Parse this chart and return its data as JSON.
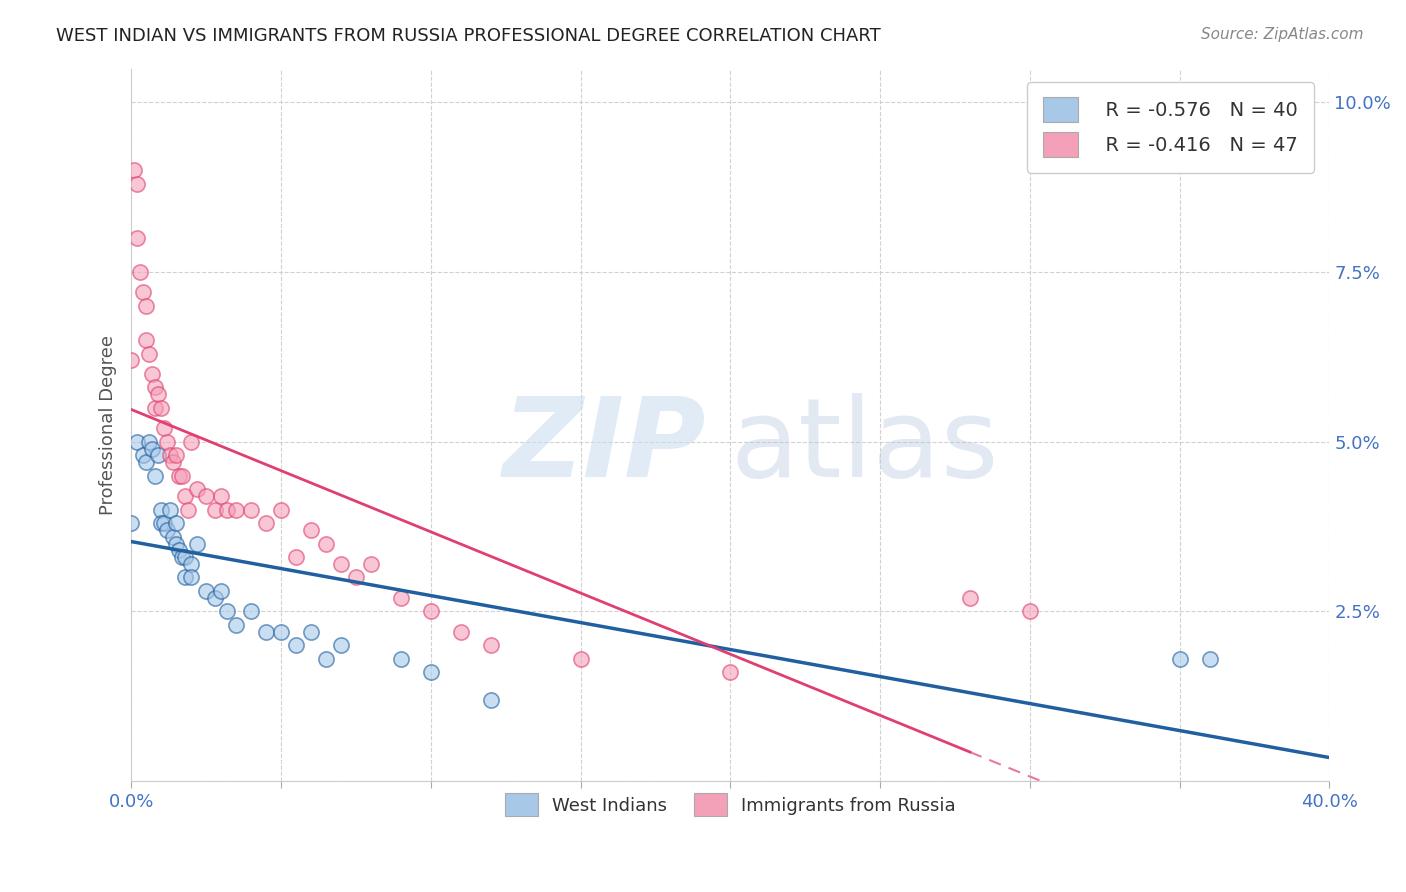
{
  "title": "WEST INDIAN VS IMMIGRANTS FROM RUSSIA PROFESSIONAL DEGREE CORRELATION CHART",
  "source": "Source: ZipAtlas.com",
  "ylabel": "Professional Degree",
  "x_label_legend": [
    "West Indians",
    "Immigrants from Russia"
  ],
  "legend_r": [
    "R = -0.576",
    "R = -0.416"
  ],
  "legend_n": [
    "N = 40",
    "N = 47"
  ],
  "blue_color": "#a8c8e8",
  "pink_color": "#f4a0b8",
  "blue_line_color": "#2060a0",
  "pink_line_color": "#e04070",
  "west_indian_x": [
    0.0,
    0.002,
    0.004,
    0.005,
    0.006,
    0.007,
    0.008,
    0.009,
    0.01,
    0.01,
    0.011,
    0.012,
    0.013,
    0.014,
    0.015,
    0.015,
    0.016,
    0.017,
    0.018,
    0.018,
    0.02,
    0.02,
    0.022,
    0.025,
    0.028,
    0.03,
    0.032,
    0.035,
    0.04,
    0.045,
    0.05,
    0.055,
    0.06,
    0.065,
    0.07,
    0.09,
    0.1,
    0.12,
    0.35,
    0.36
  ],
  "west_indian_y": [
    0.038,
    0.05,
    0.048,
    0.047,
    0.05,
    0.049,
    0.045,
    0.048,
    0.04,
    0.038,
    0.038,
    0.037,
    0.04,
    0.036,
    0.038,
    0.035,
    0.034,
    0.033,
    0.033,
    0.03,
    0.032,
    0.03,
    0.035,
    0.028,
    0.027,
    0.028,
    0.025,
    0.023,
    0.025,
    0.022,
    0.022,
    0.02,
    0.022,
    0.018,
    0.02,
    0.018,
    0.016,
    0.012,
    0.018,
    0.018
  ],
  "russia_x": [
    0.0,
    0.001,
    0.002,
    0.002,
    0.003,
    0.004,
    0.005,
    0.005,
    0.006,
    0.007,
    0.008,
    0.008,
    0.009,
    0.01,
    0.011,
    0.012,
    0.013,
    0.014,
    0.015,
    0.016,
    0.017,
    0.018,
    0.019,
    0.02,
    0.022,
    0.025,
    0.028,
    0.03,
    0.032,
    0.035,
    0.04,
    0.045,
    0.05,
    0.055,
    0.06,
    0.065,
    0.07,
    0.075,
    0.08,
    0.09,
    0.1,
    0.11,
    0.12,
    0.15,
    0.2,
    0.28,
    0.3
  ],
  "russia_y": [
    0.062,
    0.09,
    0.088,
    0.08,
    0.075,
    0.072,
    0.07,
    0.065,
    0.063,
    0.06,
    0.058,
    0.055,
    0.057,
    0.055,
    0.052,
    0.05,
    0.048,
    0.047,
    0.048,
    0.045,
    0.045,
    0.042,
    0.04,
    0.05,
    0.043,
    0.042,
    0.04,
    0.042,
    0.04,
    0.04,
    0.04,
    0.038,
    0.04,
    0.033,
    0.037,
    0.035,
    0.032,
    0.03,
    0.032,
    0.027,
    0.025,
    0.022,
    0.02,
    0.018,
    0.016,
    0.027,
    0.025
  ],
  "xlim": [
    0.0,
    0.4
  ],
  "ylim": [
    0.0,
    0.105
  ],
  "yticks": [
    0.0,
    0.025,
    0.05,
    0.075,
    0.1
  ],
  "ytick_labels": [
    "",
    "2.5%",
    "5.0%",
    "7.5%",
    "10.0%"
  ]
}
